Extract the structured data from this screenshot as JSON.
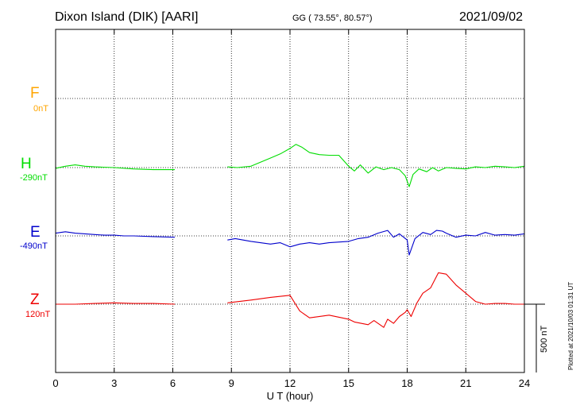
{
  "header": {
    "title": "Dixon Island (DIK)  [AARI]",
    "coords": "GG ( 73.55°,  80.57°)",
    "date": "2021/09/02"
  },
  "footer": {
    "plotted_note": "Plotted at 2021/10/03 01:31 UT"
  },
  "colors": {
    "F": "#ffa500",
    "H": "#00dd00",
    "E": "#0000cc",
    "Z": "#ee0000"
  },
  "chart_data": {
    "type": "line",
    "xlabel": "U T (hour)",
    "ylabel": "",
    "xlim": [
      0,
      24
    ],
    "xticks": [
      0,
      3,
      6,
      9,
      12,
      15,
      18,
      21,
      24
    ],
    "xtick_labels": [
      "0",
      "3",
      "6",
      "9",
      "12",
      "15",
      "18",
      "21",
      "24"
    ],
    "scale_bar": {
      "label": "500 nT",
      "value": 500,
      "unit": "nT"
    },
    "grid": true,
    "data_gap_hours": [
      6.1,
      8.8
    ],
    "series": [
      {
        "name": "F",
        "baseline": "0nT",
        "values_nT": [],
        "x": []
      },
      {
        "name": "H",
        "baseline": "-290nT",
        "x": [
          0,
          0.5,
          1.0,
          1.5,
          2.0,
          3.0,
          4.0,
          5.0,
          6.1,
          8.8,
          9.3,
          10.0,
          10.5,
          11.0,
          11.5,
          12.0,
          12.3,
          12.6,
          13.0,
          13.5,
          14.0,
          14.5,
          15.0,
          15.3,
          15.6,
          16.0,
          16.4,
          16.8,
          17.2,
          17.6,
          17.9,
          18.1,
          18.3,
          18.6,
          19.0,
          19.3,
          19.6,
          20.0,
          20.5,
          21.0,
          21.5,
          22.0,
          22.5,
          23.0,
          23.5,
          24.0
        ],
        "values_nT": [
          -5,
          10,
          20,
          10,
          5,
          0,
          -10,
          -15,
          -15,
          5,
          0,
          10,
          40,
          70,
          100,
          140,
          170,
          150,
          110,
          95,
          90,
          90,
          10,
          -25,
          20,
          -40,
          5,
          -15,
          0,
          -15,
          -60,
          -140,
          -50,
          -10,
          -30,
          0,
          -25,
          0,
          -5,
          -10,
          5,
          0,
          10,
          5,
          0,
          10
        ]
      },
      {
        "name": "E",
        "baseline": "-490nT",
        "x": [
          0,
          0.5,
          1.0,
          1.5,
          2.0,
          2.5,
          3.0,
          3.5,
          4.0,
          5.0,
          6.1,
          8.8,
          9.2,
          10.0,
          11.0,
          11.5,
          12.0,
          12.5,
          13.0,
          13.5,
          14.0,
          15.0,
          15.5,
          16.0,
          16.5,
          17.0,
          17.3,
          17.6,
          18.0,
          18.1,
          18.4,
          18.8,
          19.2,
          19.5,
          19.8,
          20.0,
          20.5,
          21.0,
          21.5,
          22.0,
          22.5,
          23.0,
          23.5,
          24.0
        ],
        "values_nT": [
          20,
          30,
          20,
          15,
          10,
          5,
          5,
          0,
          0,
          -5,
          -10,
          -30,
          -20,
          -40,
          -60,
          -50,
          -80,
          -60,
          -50,
          -60,
          -50,
          -40,
          -20,
          -10,
          20,
          40,
          -10,
          15,
          -30,
          -140,
          -20,
          25,
          10,
          40,
          35,
          20,
          -10,
          5,
          0,
          25,
          5,
          10,
          5,
          15
        ]
      },
      {
        "name": "Z",
        "baseline": "120nT",
        "x": [
          0,
          1.0,
          2.0,
          3.0,
          4.0,
          5.0,
          6.1,
          8.8,
          10.0,
          11.0,
          12.0,
          12.5,
          13.0,
          14.0,
          15.0,
          15.3,
          16.0,
          16.3,
          16.8,
          17.0,
          17.3,
          17.6,
          17.9,
          18.0,
          18.2,
          18.5,
          18.8,
          19.2,
          19.6,
          20.0,
          20.5,
          21.0,
          21.5,
          22.0,
          22.5,
          23.0,
          23.5,
          24.0
        ],
        "values_nT": [
          0,
          0,
          5,
          10,
          5,
          5,
          0,
          10,
          30,
          50,
          65,
          -50,
          -100,
          -80,
          -110,
          -130,
          -150,
          -120,
          -170,
          -110,
          -140,
          -90,
          -60,
          -40,
          -90,
          10,
          80,
          120,
          230,
          220,
          140,
          80,
          20,
          0,
          5,
          5,
          0,
          0
        ]
      }
    ]
  }
}
